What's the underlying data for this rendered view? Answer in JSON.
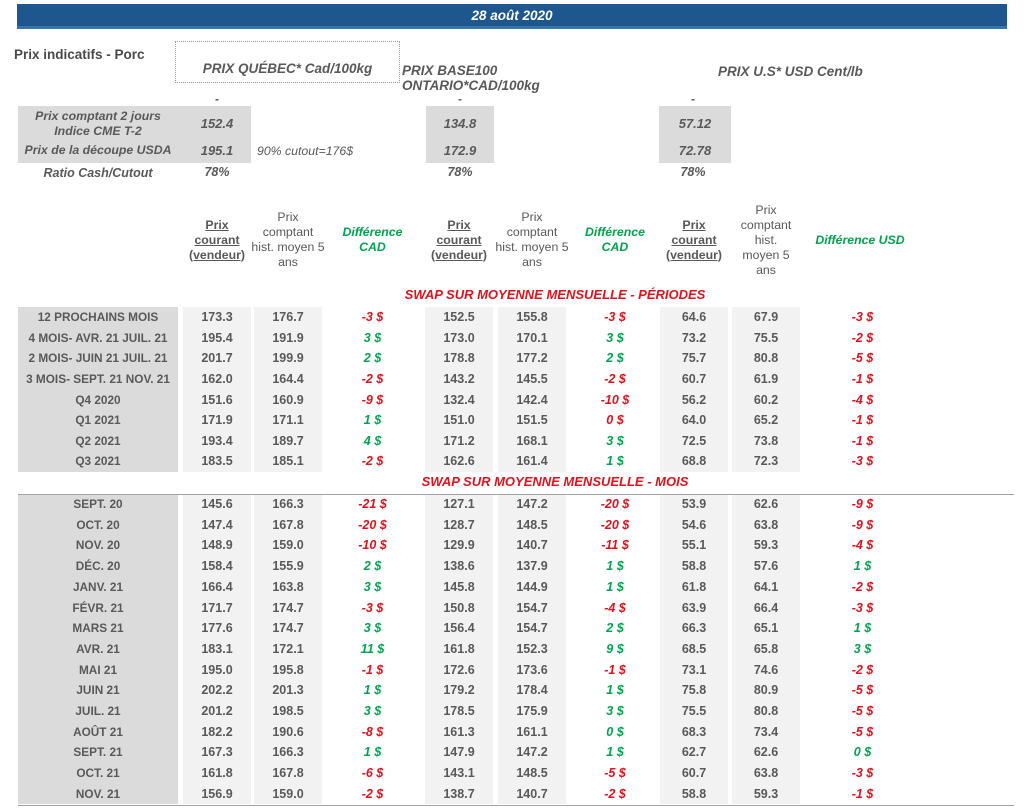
{
  "colors": {
    "banner_blue": "#1d578d",
    "banner_edge": "#3a73a6",
    "red": "#e2111b",
    "green": "#00a44e",
    "text_grey": "#595959",
    "label_bg": "#dbdbdb",
    "value_bg": "#f2f2f2"
  },
  "title_bar": {
    "date": "28 août 2020"
  },
  "header": {
    "report_label": "Prix indicatifs - Porc",
    "quebec": "PRIX QUÉBEC* Cad/100kg",
    "ontario": "PRIX BASE100 ONTARIO*CAD/100kg",
    "us": "PRIX U.S* USD Cent/lb"
  },
  "spot": {
    "dash": "-",
    "cme_label_line1": "Prix comptant 2 jours",
    "cme_label_line2": "Indice CME T-2",
    "cme": {
      "qc": "152.4",
      "on": "134.8",
      "us": "57.12"
    },
    "usda_label": "Prix de la découpe USDA",
    "usda": {
      "qc": "195.1",
      "on": "172.9",
      "us": "72.78"
    },
    "cutout_note": "90% cutout=176$",
    "ratio_label": "Ratio Cash/Cutout",
    "ratio": {
      "qc": "78%",
      "on": "78%",
      "us": "78%"
    }
  },
  "columns": {
    "prix_courant": "Prix courant (vendeur)",
    "prix_hist": "Prix comptant hist. moyen 5 ans",
    "diff_cad": "Différence CAD",
    "diff_usd": "Différence USD"
  },
  "periods": {
    "title": "SWAP SUR MOYENNE MENSUELLE - PÉRIODES",
    "rows": [
      {
        "label": "12 PROCHAINS MOIS",
        "values": [
          "173.3",
          "176.7",
          "152.5",
          "155.8",
          "64.6",
          "67.9"
        ],
        "diffs": [
          {
            "t": "-3 $",
            "c": "r"
          },
          {
            "t": "-3 $",
            "c": "r"
          },
          {
            "t": "-3 $",
            "c": "r"
          }
        ]
      },
      {
        "label": "4 MOIS- AVR. 21 JUIL. 21",
        "values": [
          "195.4",
          "191.9",
          "173.0",
          "170.1",
          "73.2",
          "75.5"
        ],
        "diffs": [
          {
            "t": "3 $",
            "c": "g"
          },
          {
            "t": "3 $",
            "c": "g"
          },
          {
            "t": "-2 $",
            "c": "r"
          }
        ]
      },
      {
        "label": "2 MOIS- JUIN 21 JUIL. 21",
        "values": [
          "201.7",
          "199.9",
          "178.8",
          "177.2",
          "75.7",
          "80.8"
        ],
        "diffs": [
          {
            "t": "2 $",
            "c": "g"
          },
          {
            "t": "2 $",
            "c": "g"
          },
          {
            "t": "-5 $",
            "c": "r"
          }
        ]
      },
      {
        "label": "3 MOIS- SEPT. 21 NOV. 21",
        "values": [
          "162.0",
          "164.4",
          "143.2",
          "145.5",
          "60.7",
          "61.9"
        ],
        "diffs": [
          {
            "t": "-2 $",
            "c": "r"
          },
          {
            "t": "-2 $",
            "c": "r"
          },
          {
            "t": "-1 $",
            "c": "r"
          }
        ]
      },
      {
        "label": "Q4 2020",
        "values": [
          "151.6",
          "160.9",
          "132.4",
          "142.4",
          "56.2",
          "60.2"
        ],
        "diffs": [
          {
            "t": "-9 $",
            "c": "r"
          },
          {
            "t": "-10 $",
            "c": "r"
          },
          {
            "t": "-4 $",
            "c": "r"
          }
        ]
      },
      {
        "label": "Q1 2021",
        "values": [
          "171.9",
          "171.1",
          "151.0",
          "151.5",
          "64.0",
          "65.2"
        ],
        "diffs": [
          {
            "t": "1 $",
            "c": "g"
          },
          {
            "t": "0 $",
            "c": "r"
          },
          {
            "t": "-1 $",
            "c": "r"
          }
        ]
      },
      {
        "label": "Q2 2021",
        "values": [
          "193.4",
          "189.7",
          "171.2",
          "168.1",
          "72.5",
          "73.8"
        ],
        "diffs": [
          {
            "t": "4 $",
            "c": "g"
          },
          {
            "t": "3 $",
            "c": "g"
          },
          {
            "t": "-1 $",
            "c": "r"
          }
        ]
      },
      {
        "label": "Q3 2021",
        "values": [
          "183.5",
          "185.1",
          "162.6",
          "161.4",
          "68.8",
          "72.3"
        ],
        "diffs": [
          {
            "t": "-2 $",
            "c": "r"
          },
          {
            "t": "1 $",
            "c": "g"
          },
          {
            "t": "-3 $",
            "c": "r"
          }
        ]
      }
    ]
  },
  "months": {
    "title": "SWAP SUR MOYENNE MENSUELLE - MOIS",
    "rows": [
      {
        "label": "SEPT. 20",
        "values": [
          "145.6",
          "166.3",
          "127.1",
          "147.2",
          "53.9",
          "62.6"
        ],
        "diffs": [
          {
            "t": "-21 $",
            "c": "r"
          },
          {
            "t": "-20 $",
            "c": "r"
          },
          {
            "t": "-9 $",
            "c": "r"
          }
        ]
      },
      {
        "label": "OCT. 20",
        "values": [
          "147.4",
          "167.8",
          "128.7",
          "148.5",
          "54.6",
          "63.8"
        ],
        "diffs": [
          {
            "t": "-20 $",
            "c": "r"
          },
          {
            "t": "-20 $",
            "c": "r"
          },
          {
            "t": "-9 $",
            "c": "r"
          }
        ]
      },
      {
        "label": "NOV. 20",
        "values": [
          "148.9",
          "159.0",
          "129.9",
          "140.7",
          "55.1",
          "59.3"
        ],
        "diffs": [
          {
            "t": "-10 $",
            "c": "r"
          },
          {
            "t": "-11 $",
            "c": "r"
          },
          {
            "t": "-4 $",
            "c": "r"
          }
        ]
      },
      {
        "label": "DÉC. 20",
        "values": [
          "158.4",
          "155.9",
          "138.6",
          "137.9",
          "58.8",
          "57.6"
        ],
        "diffs": [
          {
            "t": "2 $",
            "c": "g"
          },
          {
            "t": "1 $",
            "c": "g"
          },
          {
            "t": "1 $",
            "c": "g"
          }
        ]
      },
      {
        "label": "JANV. 21",
        "values": [
          "166.4",
          "163.8",
          "145.8",
          "144.9",
          "61.8",
          "64.1"
        ],
        "diffs": [
          {
            "t": "3 $",
            "c": "g"
          },
          {
            "t": "1 $",
            "c": "g"
          },
          {
            "t": "-2 $",
            "c": "r"
          }
        ]
      },
      {
        "label": "FÉVR. 21",
        "values": [
          "171.7",
          "174.7",
          "150.8",
          "154.7",
          "63.9",
          "66.4"
        ],
        "diffs": [
          {
            "t": "-3 $",
            "c": "r"
          },
          {
            "t": "-4 $",
            "c": "r"
          },
          {
            "t": "-3 $",
            "c": "r"
          }
        ]
      },
      {
        "label": "MARS 21",
        "values": [
          "177.6",
          "174.7",
          "156.4",
          "154.7",
          "66.3",
          "65.1"
        ],
        "diffs": [
          {
            "t": "3 $",
            "c": "g"
          },
          {
            "t": "2 $",
            "c": "g"
          },
          {
            "t": "1 $",
            "c": "g"
          }
        ]
      },
      {
        "label": "AVR. 21",
        "values": [
          "183.1",
          "172.1",
          "161.8",
          "152.3",
          "68.5",
          "65.8"
        ],
        "diffs": [
          {
            "t": "11 $",
            "c": "g"
          },
          {
            "t": "9 $",
            "c": "g"
          },
          {
            "t": "3 $",
            "c": "g"
          }
        ]
      },
      {
        "label": "MAI 21",
        "values": [
          "195.0",
          "195.8",
          "172.6",
          "173.6",
          "73.1",
          "74.6"
        ],
        "diffs": [
          {
            "t": "-1 $",
            "c": "r"
          },
          {
            "t": "-1 $",
            "c": "r"
          },
          {
            "t": "-2 $",
            "c": "r"
          }
        ]
      },
      {
        "label": "JUIN 21",
        "values": [
          "202.2",
          "201.3",
          "179.2",
          "178.4",
          "75.8",
          "80.9"
        ],
        "diffs": [
          {
            "t": "1 $",
            "c": "g"
          },
          {
            "t": "1 $",
            "c": "g"
          },
          {
            "t": "-5 $",
            "c": "r"
          }
        ]
      },
      {
        "label": "JUIL. 21",
        "values": [
          "201.2",
          "198.5",
          "178.5",
          "175.9",
          "75.5",
          "80.8"
        ],
        "diffs": [
          {
            "t": "3 $",
            "c": "g"
          },
          {
            "t": "3 $",
            "c": "g"
          },
          {
            "t": "-5 $",
            "c": "r"
          }
        ]
      },
      {
        "label": "AOÛT 21",
        "values": [
          "182.2",
          "190.6",
          "161.3",
          "161.1",
          "68.3",
          "73.4"
        ],
        "diffs": [
          {
            "t": "-8 $",
            "c": "r"
          },
          {
            "t": "0 $",
            "c": "g"
          },
          {
            "t": "-5 $",
            "c": "r"
          }
        ]
      },
      {
        "label": "SEPT. 21",
        "values": [
          "167.3",
          "166.3",
          "147.9",
          "147.2",
          "62.7",
          "62.6"
        ],
        "diffs": [
          {
            "t": "1 $",
            "c": "g"
          },
          {
            "t": "1 $",
            "c": "g"
          },
          {
            "t": "0 $",
            "c": "g"
          }
        ]
      },
      {
        "label": "OCT. 21",
        "values": [
          "161.8",
          "167.8",
          "143.1",
          "148.5",
          "60.7",
          "63.8"
        ],
        "diffs": [
          {
            "t": "-6 $",
            "c": "r"
          },
          {
            "t": "-5 $",
            "c": "r"
          },
          {
            "t": "-3 $",
            "c": "r"
          }
        ]
      },
      {
        "label": "NOV. 21",
        "values": [
          "156.9",
          "159.0",
          "138.7",
          "140.7",
          "58.8",
          "59.3"
        ],
        "diffs": [
          {
            "t": "-2 $",
            "c": "r"
          },
          {
            "t": "-2 $",
            "c": "r"
          },
          {
            "t": "-1 $",
            "c": "r"
          }
        ]
      }
    ]
  }
}
